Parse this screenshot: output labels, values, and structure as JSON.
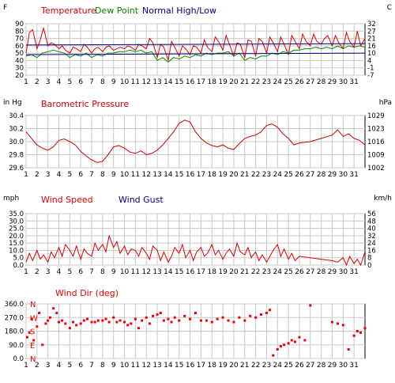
{
  "colors": {
    "temperature": "#e00000",
    "dew_point": "#008800",
    "normal": "#000080",
    "pressure": "#cc0000",
    "wind": "#dd0000",
    "winddir": "#ee0000",
    "grid": "#c8c8c8",
    "axis_text": "#000000"
  },
  "chart_data": [
    {
      "type": "line",
      "title": "",
      "legend": [
        "Temperature",
        "Dew Point",
        "Normal High/Low"
      ],
      "left_unit": "F",
      "right_unit": "C",
      "x_ticks": [
        "1",
        "2",
        "3",
        "4",
        "5",
        "6",
        "7",
        "8",
        "9",
        "10",
        "11",
        "12",
        "13",
        "14",
        "15",
        "16",
        "17",
        "18",
        "19",
        "20",
        "21",
        "22",
        "23",
        "24",
        "25",
        "26",
        "27",
        "28",
        "29",
        "30",
        "31"
      ],
      "left_ticks": [
        "90",
        "80",
        "70",
        "60",
        "50",
        "40",
        "30",
        "20"
      ],
      "right_ticks": [
        "32",
        "27",
        "21",
        "16",
        "10",
        "4",
        "-1",
        "-7"
      ],
      "ylim": [
        20,
        90
      ],
      "xlim": [
        1,
        32
      ],
      "grid": true,
      "series": [
        {
          "name": "Temperature",
          "color_key": "temperature",
          "x": [
            1.0,
            1.3,
            1.6,
            2.0,
            2.3,
            2.6,
            3.0,
            3.3,
            3.6,
            4.0,
            4.3,
            4.6,
            5.0,
            5.3,
            5.6,
            6.0,
            6.3,
            6.6,
            7.0,
            7.3,
            7.6,
            8.0,
            8.3,
            8.6,
            9.0,
            9.3,
            9.6,
            10.0,
            10.3,
            10.6,
            11.0,
            11.3,
            11.6,
            12.0,
            12.3,
            12.6,
            13.0,
            13.3,
            13.6,
            14.0,
            14.3,
            14.6,
            15.0,
            15.3,
            15.6,
            16.0,
            16.3,
            16.6,
            17.0,
            17.3,
            17.6,
            18.0,
            18.3,
            18.6,
            19.0,
            19.3,
            19.6,
            20.0,
            20.3,
            20.6,
            21.0,
            21.3,
            21.6,
            22.0,
            22.3,
            22.6,
            23.0,
            23.3,
            23.6,
            24.0,
            24.3,
            24.6,
            25.0,
            25.3,
            25.6,
            26.0,
            26.3,
            26.6,
            27.0,
            27.3,
            27.6,
            28.0,
            28.3,
            28.6,
            29.0,
            29.3,
            29.6,
            30.0,
            30.3,
            30.6,
            31.0,
            31.3,
            31.6,
            32.0
          ],
          "y": [
            50,
            78,
            82,
            56,
            68,
            84,
            60,
            64,
            62,
            56,
            60,
            54,
            50,
            58,
            56,
            52,
            62,
            58,
            50,
            56,
            58,
            52,
            58,
            60,
            54,
            56,
            58,
            56,
            60,
            58,
            54,
            62,
            60,
            56,
            70,
            64,
            44,
            62,
            58,
            40,
            66,
            58,
            46,
            60,
            56,
            48,
            60,
            58,
            50,
            68,
            58,
            52,
            72,
            66,
            54,
            74,
            62,
            46,
            64,
            62,
            44,
            68,
            66,
            46,
            70,
            66,
            50,
            72,
            64,
            52,
            72,
            62,
            48,
            74,
            66,
            56,
            76,
            66,
            60,
            76,
            66,
            62,
            70,
            74,
            60,
            74,
            64,
            56,
            78,
            66,
            58,
            80,
            60,
            70
          ]
        },
        {
          "name": "Dew Point",
          "color_key": "dew_point",
          "x": [
            1.0,
            1.5,
            2.0,
            2.5,
            3.0,
            3.5,
            4.0,
            4.5,
            5.0,
            5.5,
            6.0,
            6.5,
            7.0,
            7.5,
            8.0,
            8.5,
            9.0,
            9.5,
            10.0,
            10.5,
            11.0,
            11.5,
            12.0,
            12.5,
            13.0,
            13.5,
            14.0,
            14.5,
            15.0,
            15.5,
            16.0,
            16.5,
            17.0,
            17.5,
            18.0,
            18.5,
            19.0,
            19.5,
            20.0,
            20.5,
            21.0,
            21.5,
            22.0,
            22.5,
            23.0,
            23.5,
            24.0,
            24.5,
            25.0,
            25.5,
            26.0,
            26.5,
            27.0,
            27.5,
            28.0,
            28.5,
            29.0,
            29.5,
            30.0,
            30.5,
            31.0,
            31.5,
            32.0
          ],
          "y": [
            46,
            48,
            44,
            50,
            52,
            54,
            52,
            50,
            44,
            48,
            46,
            50,
            44,
            48,
            46,
            50,
            50,
            52,
            52,
            54,
            52,
            54,
            50,
            52,
            40,
            44,
            38,
            44,
            42,
            46,
            44,
            48,
            46,
            50,
            48,
            50,
            50,
            52,
            46,
            50,
            40,
            44,
            42,
            46,
            46,
            50,
            48,
            52,
            50,
            54,
            54,
            56,
            56,
            58,
            56,
            58,
            56,
            60,
            56,
            60,
            58,
            60,
            58
          ]
        },
        {
          "name": "Normal High",
          "color_key": "normal",
          "x": [
            1,
            32
          ],
          "y": [
            61,
            63
          ]
        },
        {
          "name": "Normal Low",
          "color_key": "normal",
          "x": [
            1,
            32
          ],
          "y": [
            48,
            50
          ]
        }
      ]
    },
    {
      "type": "line",
      "title": "",
      "legend": [
        "Barometric Pressure"
      ],
      "left_unit": "in Hg",
      "right_unit": "hPa",
      "x_ticks": [
        "1",
        "2",
        "3",
        "4",
        "5",
        "6",
        "7",
        "8",
        "9",
        "10",
        "11",
        "12",
        "13",
        "14",
        "15",
        "16",
        "17",
        "18",
        "19",
        "20",
        "21",
        "22",
        "23",
        "24",
        "25",
        "26",
        "27",
        "28",
        "29",
        "30",
        "31"
      ],
      "left_ticks": [
        "30.4",
        "30.2",
        "30.0",
        "29.8",
        "29.6"
      ],
      "right_ticks": [
        "1029",
        "1023",
        "1016",
        "1009",
        "1002"
      ],
      "ylim": [
        29.6,
        30.4
      ],
      "xlim": [
        1,
        32
      ],
      "grid": true,
      "series": [
        {
          "name": "Barometric Pressure",
          "color_key": "pressure",
          "x": [
            1.0,
            1.5,
            2.0,
            2.5,
            3.0,
            3.5,
            4.0,
            4.5,
            5.0,
            5.5,
            6.0,
            6.5,
            7.0,
            7.5,
            8.0,
            8.5,
            9.0,
            9.5,
            10.0,
            10.5,
            11.0,
            11.5,
            12.0,
            12.5,
            13.0,
            13.5,
            14.0,
            14.5,
            15.0,
            15.5,
            16.0,
            16.5,
            17.0,
            17.5,
            18.0,
            18.5,
            19.0,
            19.5,
            20.0,
            20.5,
            21.0,
            21.5,
            22.0,
            22.5,
            23.0,
            23.5,
            24.0,
            24.5,
            25.0,
            25.5,
            26.0,
            27.0,
            28.0,
            29.0,
            29.5,
            30.0,
            30.5,
            31.0,
            31.5,
            32.0
          ],
          "y": [
            30.15,
            30.05,
            29.95,
            29.9,
            29.87,
            29.92,
            30.02,
            30.04,
            30.0,
            29.95,
            29.85,
            29.78,
            29.72,
            29.68,
            29.7,
            29.8,
            29.92,
            29.94,
            29.9,
            29.84,
            29.82,
            29.86,
            29.8,
            29.82,
            29.87,
            29.95,
            30.05,
            30.15,
            30.28,
            30.33,
            30.3,
            30.15,
            30.05,
            29.98,
            29.94,
            29.92,
            29.95,
            29.9,
            29.88,
            29.97,
            30.05,
            30.08,
            30.1,
            30.15,
            30.25,
            30.27,
            30.22,
            30.12,
            30.05,
            29.95,
            29.98,
            30.0,
            30.05,
            30.1,
            30.18,
            30.08,
            30.12,
            30.05,
            30.02,
            29.95
          ]
        }
      ]
    },
    {
      "type": "line",
      "title": "",
      "legend": [
        "Wind Speed",
        "Wind Gust"
      ],
      "left_unit": "mph",
      "right_unit": "km/h",
      "x_ticks": [
        "1",
        "2",
        "3",
        "4",
        "5",
        "6",
        "7",
        "8",
        "9",
        "10",
        "11",
        "12",
        "13",
        "14",
        "15",
        "16",
        "17",
        "18",
        "19",
        "20",
        "21",
        "22",
        "23",
        "24",
        "25",
        "26",
        "27",
        "28",
        "29",
        "30",
        "31"
      ],
      "left_ticks": [
        "35.0",
        "30.0",
        "25.0",
        "20.0",
        "15.0",
        "10.0",
        "5.0",
        "0.0"
      ],
      "right_ticks": [
        "56",
        "48",
        "40",
        "32",
        "24",
        "16",
        "8",
        "0"
      ],
      "ylim": [
        0,
        35
      ],
      "xlim": [
        1,
        32
      ],
      "grid": true,
      "series": [
        {
          "name": "Wind Speed",
          "color_key": "wind",
          "x": [
            1.0,
            1.3,
            1.6,
            2.0,
            2.3,
            2.6,
            3.0,
            3.3,
            3.6,
            4.0,
            4.3,
            4.6,
            5.0,
            5.3,
            5.6,
            6.0,
            6.3,
            6.6,
            7.0,
            7.3,
            7.6,
            8.0,
            8.3,
            8.6,
            9.0,
            9.3,
            9.6,
            10.0,
            10.3,
            10.6,
            11.0,
            11.3,
            11.6,
            12.0,
            12.3,
            12.6,
            13.0,
            13.3,
            13.6,
            14.0,
            14.3,
            14.6,
            15.0,
            15.3,
            15.6,
            16.0,
            16.3,
            16.6,
            17.0,
            17.3,
            17.6,
            18.0,
            18.3,
            18.6,
            19.0,
            19.3,
            19.6,
            20.0,
            20.3,
            20.6,
            21.0,
            21.3,
            21.6,
            22.0,
            22.3,
            22.6,
            23.0,
            23.3,
            23.6,
            24.0,
            24.3,
            24.6,
            25.0,
            25.3,
            25.6,
            26.0,
            27.0,
            28.0,
            29.0,
            29.5,
            30.0,
            30.3,
            30.6,
            31.0,
            31.3,
            31.6,
            32.0
          ],
          "y": [
            2,
            8,
            3,
            10,
            4,
            7,
            2,
            9,
            5,
            12,
            6,
            14,
            10,
            6,
            13,
            4,
            11,
            8,
            6,
            15,
            10,
            14,
            9,
            20,
            12,
            16,
            8,
            13,
            7,
            11,
            10,
            6,
            12,
            8,
            4,
            13,
            10,
            3,
            9,
            2,
            6,
            12,
            8,
            14,
            5,
            10,
            3,
            9,
            12,
            6,
            8,
            14,
            7,
            10,
            4,
            8,
            11,
            6,
            15,
            9,
            7,
            12,
            5,
            9,
            3,
            7,
            2,
            6,
            10,
            14,
            6,
            11,
            4,
            8,
            3,
            6,
            5,
            4,
            3,
            2,
            5,
            0,
            6,
            1,
            4,
            0,
            9
          ]
        }
      ]
    },
    {
      "type": "scatter",
      "title": "",
      "legend": [
        "Wind Dir (deg)"
      ],
      "left_unit": "",
      "right_unit": "",
      "x_ticks": [
        "1",
        "2",
        "3",
        "4",
        "5",
        "6",
        "7",
        "8",
        "9",
        "10",
        "11",
        "12",
        "13",
        "14",
        "15",
        "16",
        "17",
        "18",
        "19",
        "20",
        "21",
        "22",
        "23",
        "24",
        "25",
        "26",
        "27",
        "28",
        "29",
        "30",
        "31"
      ],
      "left_ticks": [
        "360.0",
        "270.0",
        "180.0",
        "90.0",
        "0.0"
      ],
      "compass_ticks": [
        "N",
        "W",
        "S",
        "E",
        "N"
      ],
      "ylim": [
        0,
        360
      ],
      "xlim": [
        1,
        32
      ],
      "grid": true,
      "series": [
        {
          "name": "Wind Dir (deg)",
          "color_key": "winddir",
          "x": [
            1.1,
            1.3,
            1.5,
            1.7,
            2.0,
            2.2,
            2.5,
            2.8,
            3.0,
            3.2,
            3.5,
            3.8,
            4.0,
            4.3,
            4.6,
            5.0,
            5.3,
            5.6,
            6.0,
            6.3,
            6.6,
            7.0,
            7.3,
            7.6,
            8.0,
            8.3,
            8.6,
            9.0,
            9.3,
            9.6,
            10.0,
            10.3,
            10.6,
            11.0,
            11.3,
            11.6,
            12.0,
            12.3,
            12.6,
            13.0,
            13.3,
            13.6,
            14.0,
            14.3,
            14.6,
            15.0,
            15.5,
            16.0,
            16.5,
            17.0,
            17.5,
            18.0,
            18.5,
            19.0,
            19.5,
            20.0,
            20.5,
            21.0,
            21.5,
            22.0,
            22.5,
            23.0,
            23.3,
            23.6,
            24.0,
            24.3,
            24.6,
            25.0,
            25.3,
            25.6,
            26.0,
            26.5,
            27.0,
            29.0,
            29.5,
            30.0,
            30.5,
            31.0,
            31.3,
            31.6,
            32.0
          ],
          "y": [
            140,
            170,
            260,
            120,
            210,
            300,
            90,
            230,
            250,
            270,
            330,
            300,
            240,
            250,
            230,
            200,
            240,
            220,
            230,
            250,
            260,
            240,
            240,
            250,
            250,
            260,
            240,
            270,
            240,
            250,
            240,
            220,
            230,
            260,
            200,
            250,
            270,
            230,
            280,
            290,
            300,
            250,
            260,
            240,
            270,
            250,
            280,
            260,
            300,
            250,
            250,
            240,
            260,
            270,
            250,
            240,
            270,
            250,
            280,
            270,
            290,
            300,
            320,
            20,
            60,
            80,
            90,
            100,
            120,
            110,
            140,
            120,
            350,
            240,
            230,
            220,
            60,
            150,
            180,
            170,
            200
          ]
        }
      ]
    }
  ]
}
